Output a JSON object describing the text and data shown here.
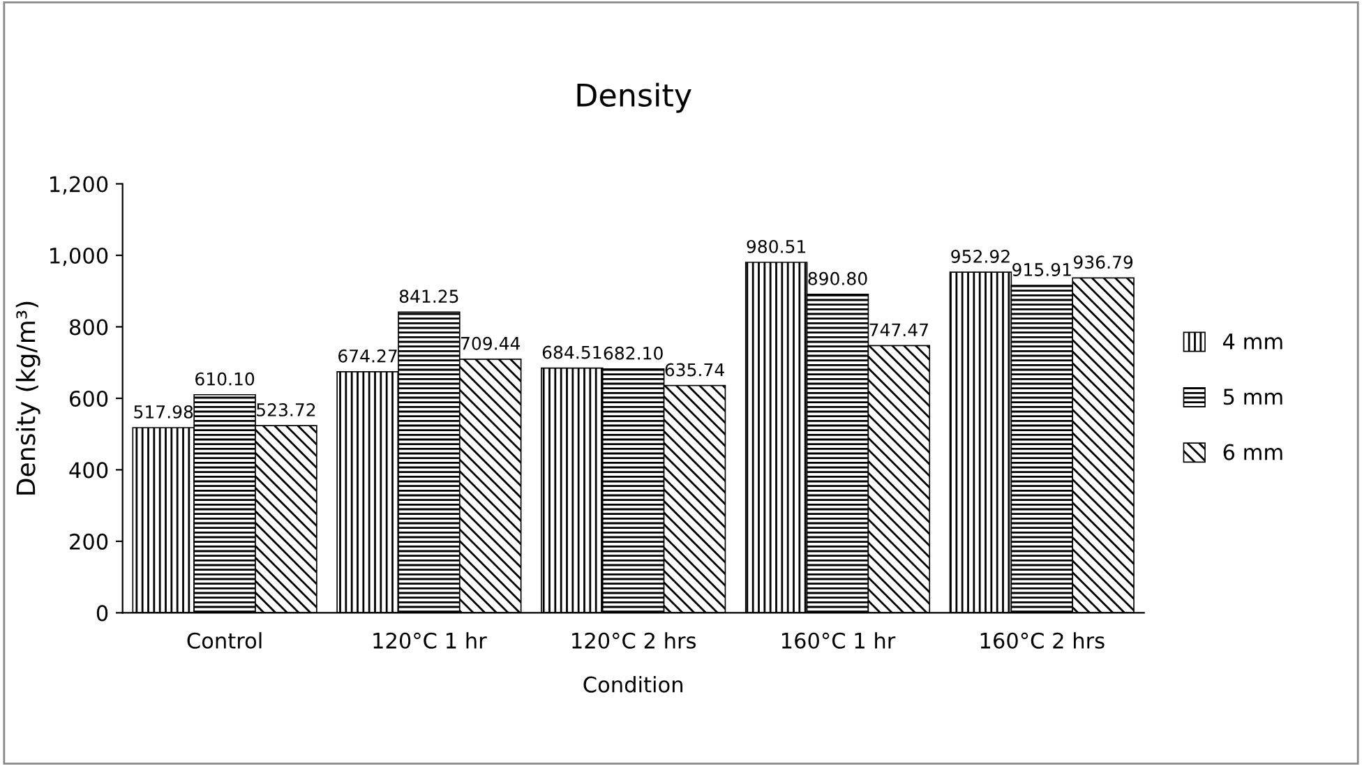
{
  "chart_data": {
    "type": "bar",
    "title": "Density",
    "xlabel": "Condition",
    "ylabel": "Density (kg/m³)",
    "categories": [
      "Control",
      "120°C 1 hr",
      "120°C 2 hrs",
      "160°C 1 hr",
      "160°C 2 hrs"
    ],
    "series": [
      {
        "name": "4 mm",
        "color": "#000000",
        "values": [
          517.98,
          674.27,
          684.51,
          980.51,
          952.92
        ],
        "value_labels": [
          "517.98",
          "674.27",
          "684.51",
          "980.51",
          "952.92"
        ]
      },
      {
        "name": "5 mm",
        "color": "#000000",
        "values": [
          610.1,
          841.25,
          682.1,
          890.8,
          915.91
        ],
        "value_labels": [
          "610.10",
          "841.25",
          "682.10",
          "890.80",
          "915.91"
        ]
      },
      {
        "name": "6 mm",
        "color": "#000000",
        "values": [
          523.72,
          709.44,
          635.74,
          747.47,
          936.79
        ],
        "value_labels": [
          "523.72",
          "709.44",
          "635.74",
          "747.47",
          "936.79"
        ]
      }
    ],
    "ylim": [
      0,
      1200
    ],
    "yticks": [
      0,
      200,
      400,
      600,
      800,
      {
        "value": 1000,
        "label": "1,000"
      },
      {
        "value": 1200,
        "label": "1,200"
      }
    ],
    "grid": false,
    "legend": "right"
  }
}
